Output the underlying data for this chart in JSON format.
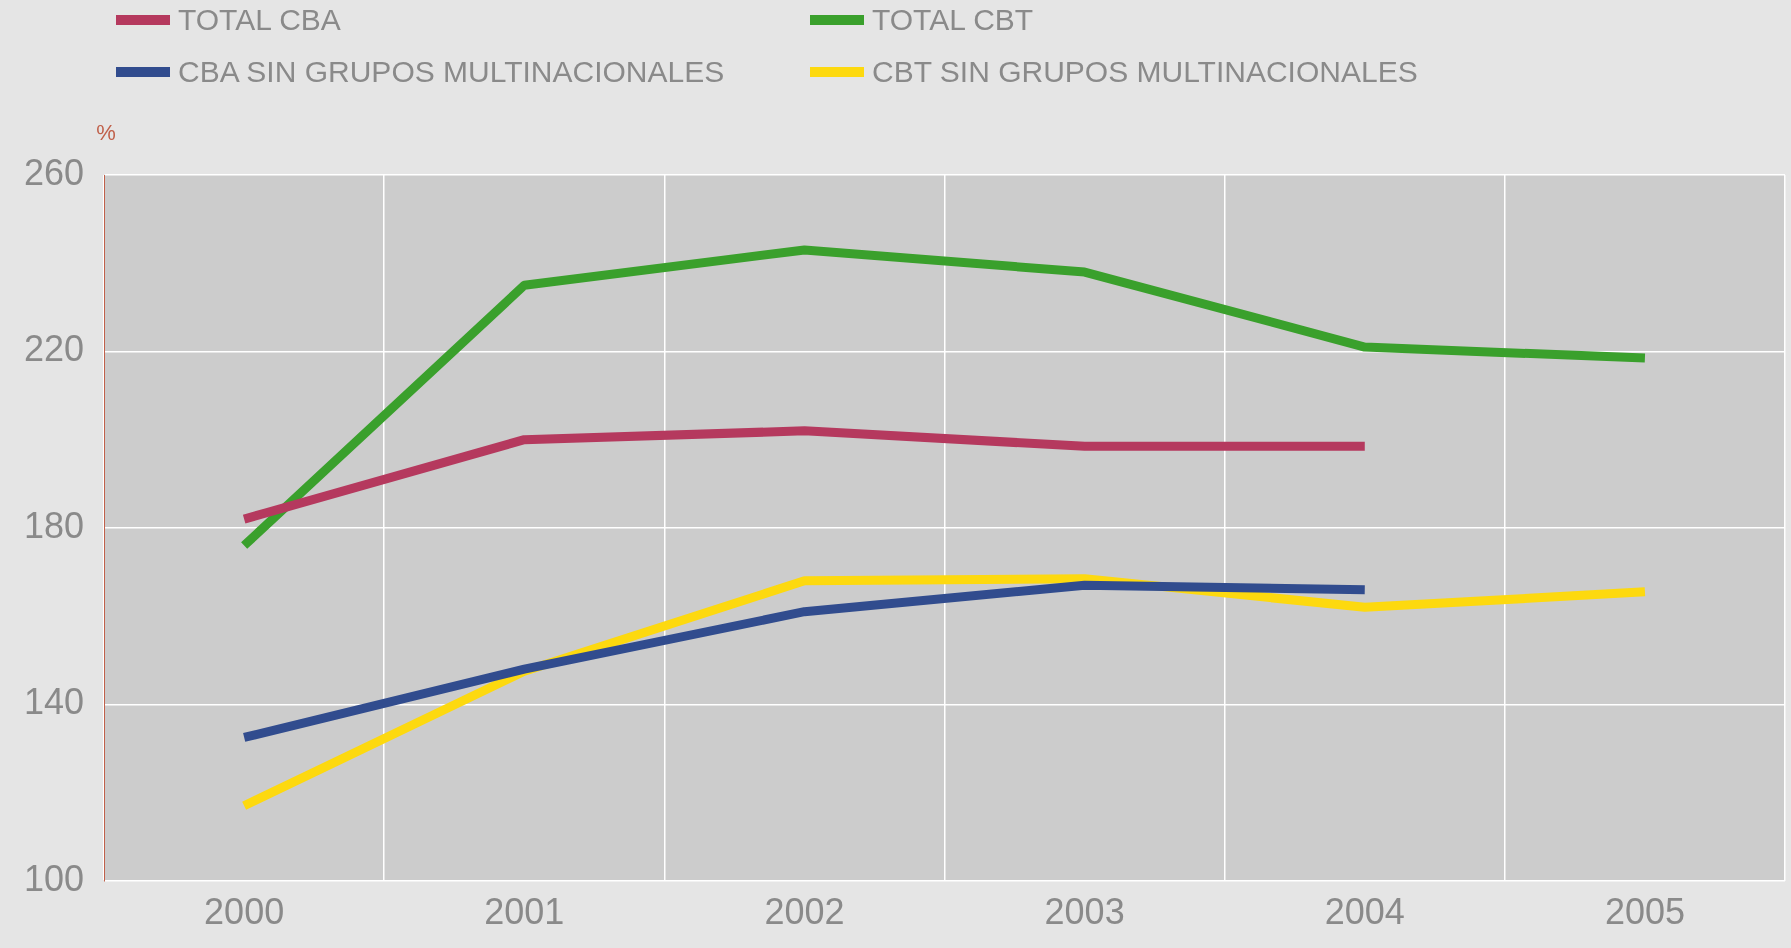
{
  "chart_data": {
    "type": "line",
    "ylabel": "%",
    "categories": [
      "2000",
      "2001",
      "2002",
      "2003",
      "2004",
      "2005"
    ],
    "series": [
      {
        "name": "TOTAL CBA",
        "color": "#b5395e",
        "values": [
          182,
          200,
          202,
          198.5,
          198.5,
          null
        ]
      },
      {
        "name": "TOTAL CBT",
        "color": "#3aa02c",
        "values": [
          176,
          235,
          243,
          238,
          221,
          218.5
        ]
      },
      {
        "name": "CBA SIN GRUPOS MULTINACIONALES",
        "color": "#314c8e",
        "values": [
          132.5,
          148,
          161,
          167,
          166,
          null
        ]
      },
      {
        "name": "CBT SIN GRUPOS MULTINACIONALES",
        "color": "#fdd90f",
        "values": [
          117,
          147.5,
          168,
          168.5,
          162,
          165.5
        ]
      }
    ],
    "ylim": [
      100,
      260
    ],
    "yticks": [
      100,
      140,
      180,
      220,
      260
    ],
    "grid": true,
    "legend": "top left",
    "marker": "none",
    "line_style": "solid"
  }
}
